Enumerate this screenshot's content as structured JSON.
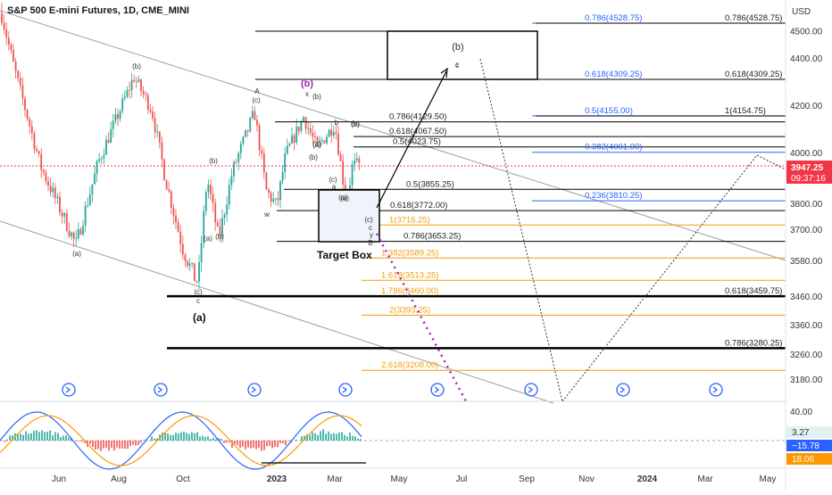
{
  "chart_data": {
    "type": "candlestick",
    "title": "S&P 500 E-mini Futures, 1D, CME_MINI",
    "currency": "USD",
    "last_price": "3947.25",
    "countdown": "09:37:16",
    "y_ticks": [
      "4500.00",
      "4400.00",
      "4200.00",
      "4000.00",
      "3800.00",
      "3700.00",
      "3580.00",
      "3460.00",
      "3360.00",
      "3260.00",
      "3180.00"
    ],
    "x_ticks": [
      "Jun",
      "Aug",
      "Oct",
      "2023",
      "Mar",
      "May",
      "Jul",
      "Sep",
      "Nov",
      "2024",
      "Mar",
      "May"
    ],
    "ylim": [
      3120,
      4600
    ],
    "colors": {
      "up": "#26a69a",
      "down": "#ef5350",
      "fib_black": "#000000",
      "fib_blue": "#2962ff",
      "fib_orange": "#f29d0c",
      "price_tag": "#f23645",
      "wave_b": "#9c27b0",
      "macd": "#2962ff",
      "signal": "#ff9800"
    },
    "fib_levels": [
      {
        "label": "0.786(4528.75)",
        "value": 4528.75,
        "group": "blue-upper"
      },
      {
        "label": "0.786(4528.75)",
        "value": 4528.75,
        "group": "black-right"
      },
      {
        "label": "0.618(4309.25)",
        "value": 4309.25,
        "group": "blue-upper"
      },
      {
        "label": "0.618(4309.25)",
        "value": 4309.25,
        "group": "black-right"
      },
      {
        "label": "0.5(4155.00)",
        "value": 4155.0,
        "group": "blue-upper"
      },
      {
        "label": "1(4154.75)",
        "value": 4154.75,
        "group": "black-right"
      },
      {
        "label": "0.786(4129.50)",
        "value": 4129.5,
        "group": "black-mid"
      },
      {
        "label": "0.618(4067.50)",
        "value": 4067.5,
        "group": "black-mid"
      },
      {
        "label": "0.5(4023.75)",
        "value": 4023.75,
        "group": "black-mid"
      },
      {
        "label": "0.382(4001.00)",
        "value": 4001.0,
        "group": "blue-upper"
      },
      {
        "label": "0.5(3855.25)",
        "value": 3855.25,
        "group": "black-mid"
      },
      {
        "label": "0.236(3810.25)",
        "value": 3810.25,
        "group": "blue-upper"
      },
      {
        "label": "0.618(3772.00)",
        "value": 3772.0,
        "group": "black-mid"
      },
      {
        "label": "1(3716.25)",
        "value": 3716.25,
        "group": "orange"
      },
      {
        "label": "0.786(3653.25)",
        "value": 3653.25,
        "group": "black-mid"
      },
      {
        "label": "1.382(3589.25)",
        "value": 3589.25,
        "group": "orange"
      },
      {
        "label": "1.618(3513.25)",
        "value": 3513.25,
        "group": "orange"
      },
      {
        "label": "1.786(3460.00)",
        "value": 3460.0,
        "group": "orange"
      },
      {
        "label": "0.618(3459.75)",
        "value": 3459.75,
        "group": "black-right"
      },
      {
        "label": "2(3393.25)",
        "value": 3393.25,
        "group": "orange"
      },
      {
        "label": "0.786(3280.25)",
        "value": 3280.25,
        "group": "black-right"
      },
      {
        "label": "2.618(3208.00)",
        "value": 3208.0,
        "group": "orange"
      }
    ],
    "wave_labels": [
      "(b)",
      "(a)",
      "(b)",
      "(a)",
      "(b)",
      "A",
      "(c)",
      "(b)",
      "x",
      "(b)",
      "(a)",
      "b",
      "(b)",
      "(a)",
      "w",
      "(c)",
      "a",
      "(a)",
      "(c)",
      "c",
      "y",
      "B",
      "(c)",
      "c",
      "(a)",
      "(b)",
      "c"
    ],
    "annotations": {
      "target_box": "Target Box",
      "wave_b_big": "(b)",
      "wave_b_label": "(b)",
      "wave_c_label": "c",
      "wave_a_bottom": "(a)"
    },
    "indicator_panels": [
      {
        "name": "stochastic",
        "ticks": [
          "40.00"
        ]
      },
      {
        "name": "macd",
        "values": [
          "3.27",
          "−15.78",
          "18.06"
        ]
      }
    ]
  }
}
